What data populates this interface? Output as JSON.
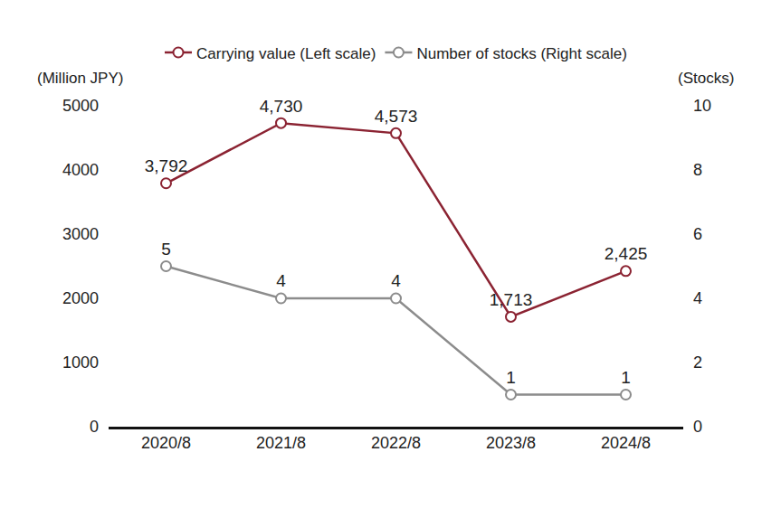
{
  "chart_data": {
    "type": "line",
    "ylabel": "(Million JPY)",
    "y2label": "(Stocks)",
    "categories": [
      "2020/8",
      "2021/8",
      "2022/8",
      "2023/8",
      "2024/8"
    ],
    "series": [
      {
        "name": "Carrying value (Left scale)",
        "color": "#8b2332",
        "marker": "open circle",
        "values": [
          3792,
          4730,
          4573,
          1713,
          2425
        ],
        "value_labels": [
          "3,792",
          "4,730",
          "4,573",
          "1,713",
          "2,425"
        ]
      },
      {
        "name": "Number of stocks (Right scale)",
        "color": "#8c8c8c",
        "marker": "open circle",
        "axis": "y2",
        "values": [
          5,
          4,
          4,
          1,
          1
        ]
      }
    ],
    "ylim": [
      0,
      5000
    ],
    "yticks": [
      0,
      1000,
      2000,
      3000,
      4000,
      5000
    ],
    "y2lim": [
      0,
      10
    ],
    "y2ticks": [
      0,
      2,
      4,
      6,
      8,
      10
    ],
    "data_labels": true,
    "grid": false,
    "legend": "top"
  }
}
